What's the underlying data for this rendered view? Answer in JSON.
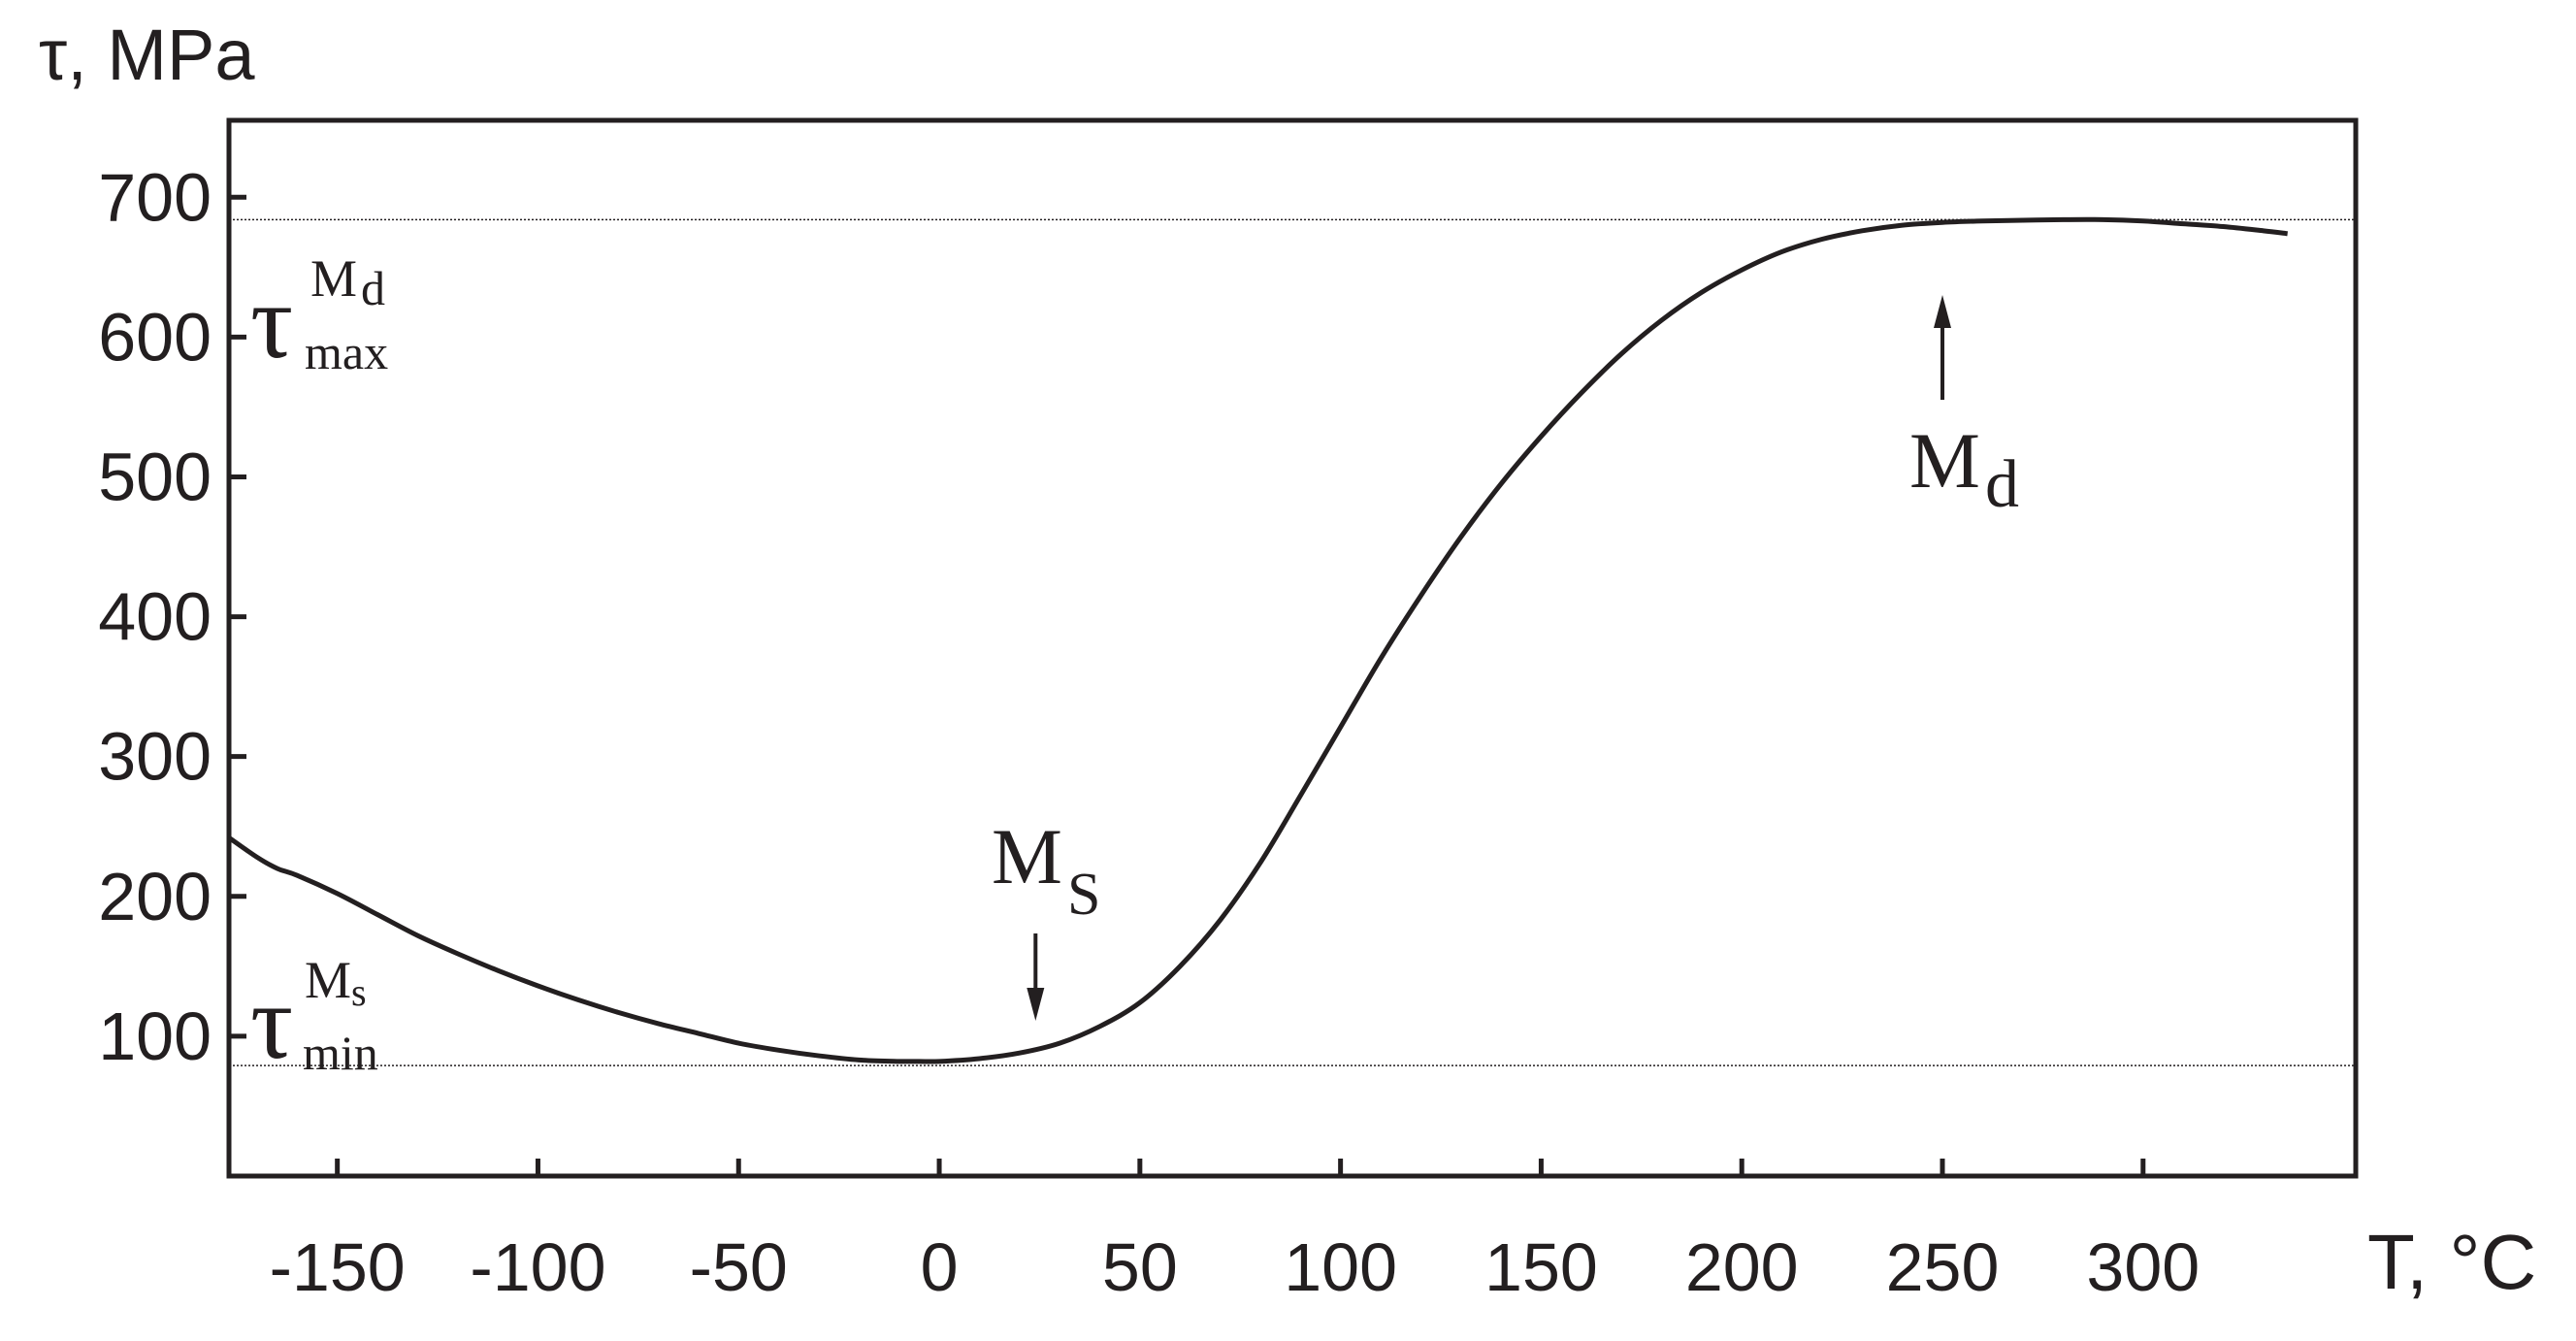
{
  "chart_data": {
    "type": "line",
    "xlabel": "T, °C",
    "ylabel": "τ, MPa",
    "xlim": [
      -177,
      353
    ],
    "ylim": [
      0,
      755
    ],
    "x_ticks": [
      -150,
      -100,
      -50,
      0,
      50,
      100,
      150,
      200,
      250,
      300
    ],
    "y_ticks": [
      100,
      200,
      300,
      400,
      500,
      600,
      700
    ],
    "x_tick_labels": [
      "-150",
      "-100",
      "-50",
      "0",
      "50",
      "100",
      "150",
      "200",
      "250",
      "300"
    ],
    "y_tick_labels": [
      "100",
      "200",
      "300",
      "400",
      "500",
      "600",
      "700"
    ],
    "grid": false,
    "series": [
      {
        "x": [
          -177,
          -170,
          -165,
          -160,
          -150,
          -140,
          -130,
          -120,
          -110,
          -100,
          -90,
          -80,
          -70,
          -60,
          -50,
          -40,
          -30,
          -20,
          -10,
          -5,
          0,
          10,
          20,
          30,
          40,
          50,
          60,
          70,
          80,
          90,
          100,
          110,
          120,
          130,
          140,
          150,
          160,
          170,
          180,
          190,
          200,
          210,
          220,
          230,
          240,
          250,
          260,
          270,
          280,
          290,
          300,
          310,
          320,
          330,
          336
        ],
        "y": [
          242,
          228,
          220,
          215,
          202,
          187,
          172,
          159,
          147,
          136,
          126,
          117,
          109,
          102,
          95,
          90,
          86,
          83,
          82,
          82,
          82,
          84,
          88,
          95,
          107,
          124,
          150,
          183,
          224,
          272,
          321,
          370,
          415,
          457,
          495,
          529,
          560,
          588,
          612,
          632,
          648,
          661,
          670,
          676,
          680,
          682,
          683,
          683.5,
          684,
          684,
          683,
          681,
          679,
          676,
          674
        ],
        "color": "#231f20"
      }
    ],
    "reference_lines": [
      {
        "y": 684,
        "label": "τ_max^Md"
      },
      {
        "y": 79,
        "label": "τ_min^Ms"
      }
    ],
    "annotations": [
      {
        "text": "M",
        "subscript": "S",
        "x": 24,
        "arrow": "down"
      },
      {
        "text": "M",
        "subscript": "d",
        "x": 250,
        "arrow": "up"
      }
    ],
    "labels": {
      "tau_max": {
        "symbol": "τ",
        "sub": "max",
        "sup_main": "M",
        "sup_sub": "d"
      },
      "tau_min": {
        "symbol": "τ",
        "sub": "min",
        "sup_main": "M",
        "sup_sub": "s"
      }
    }
  }
}
